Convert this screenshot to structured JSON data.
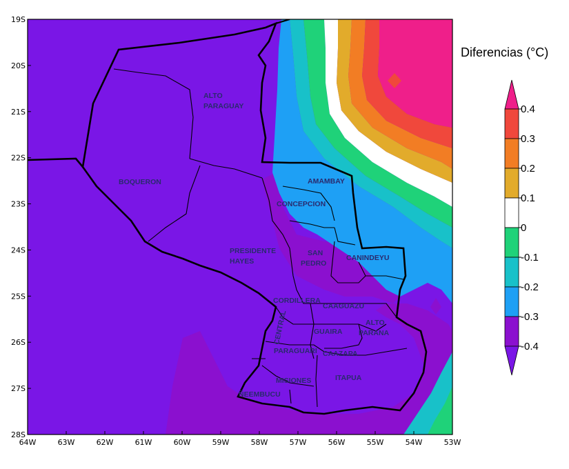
{
  "legend": {
    "title": "Diferencias (°C)",
    "levels": [
      {
        "label": "0.4",
        "color": "#ef1f8a"
      },
      {
        "label": "0.3",
        "color": "#f0483c"
      },
      {
        "label": "0.2",
        "color": "#f27d24"
      },
      {
        "label": "0.1",
        "color": "#e2ab2b"
      },
      {
        "label": "0",
        "color": "#ffffff"
      },
      {
        "label": "-0.1",
        "color": "#1fd279"
      },
      {
        "label": "-0.2",
        "color": "#18c1c9"
      },
      {
        "label": "-0.3",
        "color": "#1ea0f5"
      },
      {
        "label": "-0.4",
        "color": "#8b10cf"
      }
    ],
    "low_color": "#7a16e6",
    "high_color": "#ef1f8a"
  },
  "axes": {
    "x_ticks": [
      "64W",
      "63W",
      "62W",
      "61W",
      "60W",
      "59W",
      "58W",
      "57W",
      "56W",
      "55W",
      "54W",
      "53W"
    ],
    "y_ticks": [
      "19S",
      "20S",
      "21S",
      "22S",
      "23S",
      "24S",
      "25S",
      "26S",
      "27S",
      "28S"
    ]
  },
  "departments": [
    {
      "id": "alto-paraguay",
      "lines": [
        "ALTO",
        "PARAGUAY"
      ]
    },
    {
      "id": "boqueron",
      "lines": [
        "BOQUERON"
      ]
    },
    {
      "id": "presidente-hayes",
      "lines": [
        "PRESIDENTE",
        "HAYES"
      ]
    },
    {
      "id": "amambay",
      "lines": [
        "AMAMBAY"
      ]
    },
    {
      "id": "concepcion",
      "lines": [
        "CONCEPCION"
      ]
    },
    {
      "id": "san-pedro",
      "lines": [
        "SAN",
        "PEDRO"
      ]
    },
    {
      "id": "canindeyu",
      "lines": [
        "CANINDEYU"
      ]
    },
    {
      "id": "cordillera",
      "lines": [
        "CORDILLERA"
      ]
    },
    {
      "id": "caaguazu",
      "lines": [
        "CAAGUAZU"
      ]
    },
    {
      "id": "alto-parana",
      "lines": [
        "ALTO",
        "PARANA"
      ]
    },
    {
      "id": "central",
      "lines": [
        "CENTRAL"
      ]
    },
    {
      "id": "guaira",
      "lines": [
        "GUAIRA"
      ]
    },
    {
      "id": "paraguari",
      "lines": [
        "PARAGUARI"
      ]
    },
    {
      "id": "caazapa",
      "lines": [
        "CAAZAPA"
      ]
    },
    {
      "id": "misiones",
      "lines": [
        "MISIONES"
      ]
    },
    {
      "id": "itapua",
      "lines": [
        "ITAPUA"
      ]
    },
    {
      "id": "neembucu",
      "lines": [
        "ÑEEMBUCU"
      ]
    }
  ]
}
